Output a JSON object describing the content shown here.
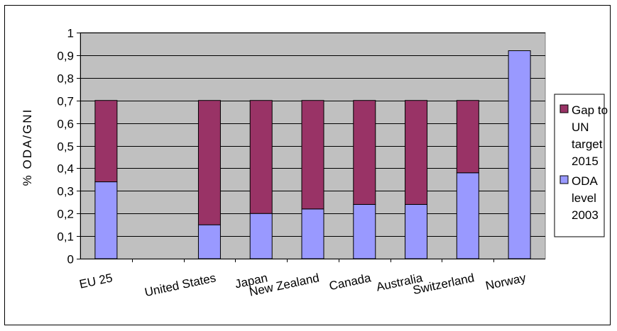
{
  "chart_data": {
    "type": "bar",
    "stacked": true,
    "ylabel": "% ODA/GNI",
    "ylim": [
      0,
      1
    ],
    "yticks": [
      "0",
      "0,1",
      "0,2",
      "0,3",
      "0,4",
      "0,5",
      "0,6",
      "0,7",
      "0,8",
      "0,9",
      "1"
    ],
    "grid": true,
    "plot_background": "#c0c0c0",
    "legend_position": "right",
    "categories": [
      "EU 25",
      "",
      "United States",
      "Japan",
      "New Zealand",
      "Canada",
      "Australia",
      "Switzerland",
      "Norway"
    ],
    "series": [
      {
        "name": "ODA level 2003",
        "legend_lines": [
          "ODA",
          "level",
          "2003"
        ],
        "color": "#9999ff",
        "values": [
          0.34,
          null,
          0.15,
          0.2,
          0.22,
          0.24,
          0.24,
          0.38,
          0.92
        ]
      },
      {
        "name": "Gap to UN target 2015",
        "legend_lines": [
          "Gap to",
          "UN",
          "target",
          "2015"
        ],
        "color": "#993366",
        "values": [
          0.36,
          null,
          0.55,
          0.5,
          0.48,
          0.46,
          0.46,
          0.32,
          0
        ]
      }
    ]
  }
}
